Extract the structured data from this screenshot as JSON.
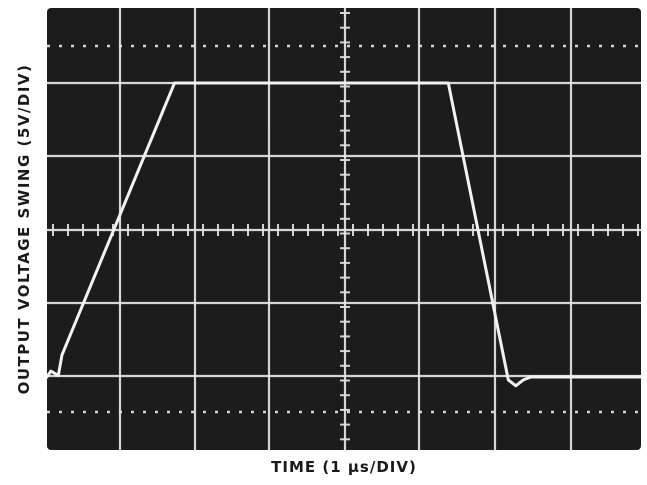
{
  "chart_data": {
    "type": "line",
    "title": "",
    "xlabel": "TIME (1 µs/DIV)",
    "ylabel": "OUTPUT VOLTAGE SWING (5V/DIV)",
    "x_units_per_div": 1,
    "y_units_per_div": 5,
    "xlim": [
      0,
      8
    ],
    "ylim": [
      -15,
      15
    ],
    "grid": true,
    "series": [
      {
        "name": "",
        "x": [
          0,
          0.05,
          0.15,
          0.2,
          1.7,
          5.35,
          6.15,
          6.25,
          6.35,
          6.45,
          8
        ],
        "y": [
          -10,
          -9.6,
          -9.9,
          -8.5,
          10,
          10,
          -10.2,
          -10.6,
          -10.2,
          -10,
          -10
        ]
      }
    ],
    "colors": {
      "screen": "#1c1c1c",
      "grid": "#e6e6e6",
      "trace": "#f2f2f2",
      "labels": "#1a1a1a"
    }
  }
}
